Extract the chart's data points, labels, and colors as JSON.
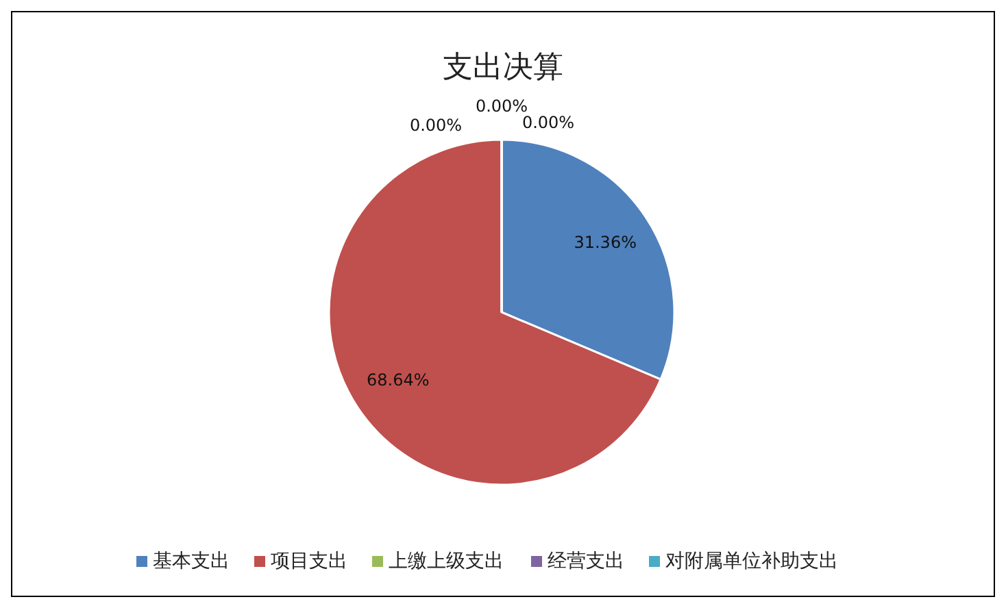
{
  "chart_data": {
    "type": "pie",
    "title": "支出决算",
    "categories": [
      "基本支出",
      "项目支出",
      "上缴上级支出",
      "经营支出",
      "对附属单位补助支出"
    ],
    "values": [
      31.36,
      68.64,
      0,
      0,
      0
    ],
    "colors": [
      "#4f81bd",
      "#c0504d",
      "#9bbb59",
      "#8064a2",
      "#4bacc6"
    ],
    "value_labels": [
      "31.36%",
      "68.64%",
      "0.00%",
      "0.00%",
      "0.00%"
    ],
    "legend": "bottom"
  }
}
